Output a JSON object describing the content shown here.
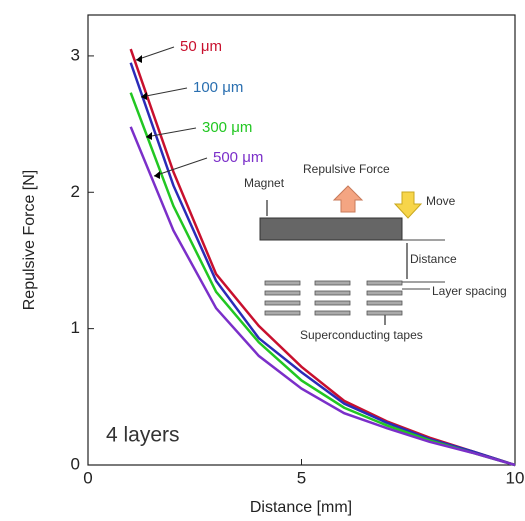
{
  "chart_data": {
    "type": "line",
    "xlabel": "Distance [mm]",
    "ylabel": "Repulsive Force [N]",
    "x": [
      1,
      2,
      3,
      4,
      5,
      6,
      7,
      8,
      9,
      10
    ],
    "series": [
      {
        "name": "50 μm",
        "color": "#c8102e",
        "values": [
          3.05,
          2.15,
          1.4,
          1.02,
          0.72,
          0.47,
          0.32,
          0.2,
          0.1,
          0
        ]
      },
      {
        "name": "100 μm",
        "color": "#2b2bb8",
        "values": [
          2.95,
          2.05,
          1.35,
          0.93,
          0.68,
          0.45,
          0.31,
          0.19,
          0.1,
          0
        ]
      },
      {
        "name": "300 μm",
        "color": "#22c722",
        "values": [
          2.73,
          1.9,
          1.27,
          0.9,
          0.62,
          0.42,
          0.29,
          0.18,
          0.09,
          0
        ]
      },
      {
        "name": "500 μm",
        "color": "#7b2fc9",
        "values": [
          2.48,
          1.72,
          1.15,
          0.8,
          0.56,
          0.38,
          0.27,
          0.17,
          0.09,
          0
        ]
      }
    ],
    "label_colors": [
      "#c8102e",
      "#2a6fb0",
      "#22c722",
      "#7b2fc9"
    ],
    "xlim": [
      0,
      10
    ],
    "xticks": [
      0,
      5,
      10
    ],
    "ylim": [
      0,
      3.3
    ],
    "yticks": [
      0,
      1,
      2,
      3
    ],
    "annotation": "4 layers",
    "inset": {
      "force": "Repulsive Force",
      "magnet": "Magnet",
      "move": "Move",
      "distance": "Distance",
      "spacing": "Layer spacing",
      "tapes": "Superconducting tapes"
    }
  }
}
